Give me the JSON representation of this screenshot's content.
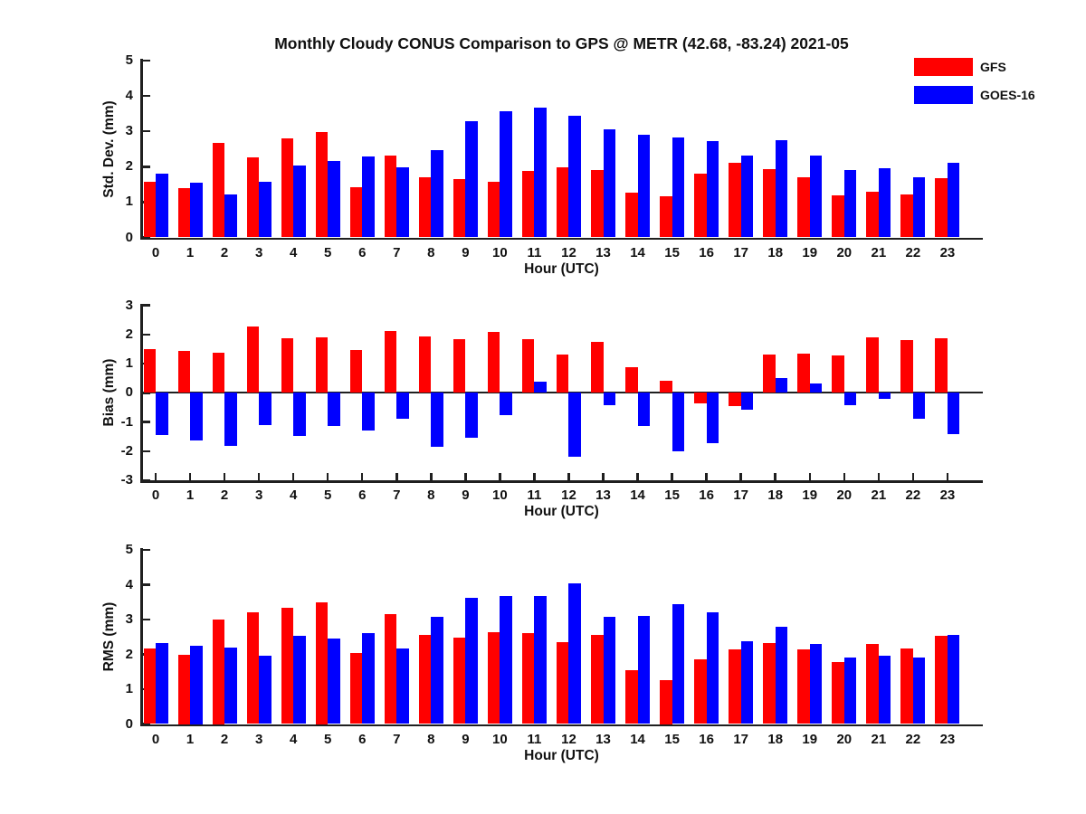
{
  "title": "Monthly Cloudy CONUS Comparison to GPS @ METR (42.68, -83.24) 2021-05",
  "legend": {
    "position": "top-right",
    "items": [
      {
        "label": "GFS",
        "color": "#ff0000"
      },
      {
        "label": "GOES-16",
        "color": "#0000ff"
      }
    ]
  },
  "axis_color": "#1f1f1f",
  "chart_data": [
    {
      "type": "bar",
      "title": "",
      "ylabel": "Std. Dev. (mm)",
      "xlabel": "Hour (UTC)",
      "categories": [
        "0",
        "1",
        "2",
        "3",
        "4",
        "5",
        "6",
        "7",
        "8",
        "9",
        "10",
        "11",
        "12",
        "13",
        "14",
        "15",
        "16",
        "17",
        "18",
        "19",
        "20",
        "21",
        "22",
        "23"
      ],
      "ylim": [
        0,
        5
      ],
      "yticks": [
        0,
        1,
        2,
        3,
        4,
        5
      ],
      "grid": false,
      "series": [
        {
          "name": "GFS",
          "color": "#ff0000",
          "values": [
            1.57,
            1.4,
            2.67,
            2.27,
            2.8,
            2.97,
            1.42,
            2.31,
            1.7,
            1.66,
            1.57,
            1.88,
            1.97,
            1.9,
            1.27,
            1.16,
            1.81,
            2.1,
            1.92,
            1.7,
            1.18,
            1.29,
            1.21,
            1.67
          ]
        },
        {
          "name": "GOES-16",
          "color": "#0000ff",
          "values": [
            1.8,
            1.55,
            1.22,
            1.57,
            2.03,
            2.15,
            2.28,
            1.97,
            2.46,
            3.28,
            3.58,
            3.66,
            3.43,
            3.06,
            2.9,
            2.82,
            2.73,
            2.32,
            2.76,
            2.31,
            1.91,
            1.96,
            1.71,
            2.1
          ]
        }
      ]
    },
    {
      "type": "bar",
      "title": "",
      "ylabel": "Bias (mm)",
      "xlabel": "Hour (UTC)",
      "categories": [
        "0",
        "1",
        "2",
        "3",
        "4",
        "5",
        "6",
        "7",
        "8",
        "9",
        "10",
        "11",
        "12",
        "13",
        "14",
        "15",
        "16",
        "17",
        "18",
        "19",
        "20",
        "21",
        "22",
        "23"
      ],
      "ylim": [
        -3,
        3
      ],
      "yticks": [
        -3,
        -2,
        -1,
        0,
        1,
        2,
        3
      ],
      "grid": false,
      "zero_line": true,
      "series": [
        {
          "name": "GFS",
          "color": "#ff0000",
          "values": [
            1.5,
            1.43,
            1.38,
            2.28,
            1.86,
            1.91,
            1.46,
            2.12,
            1.92,
            1.85,
            2.1,
            1.85,
            1.32,
            1.73,
            0.87,
            0.4,
            -0.37,
            -0.45,
            1.32,
            1.35,
            1.28,
            1.9,
            1.8,
            1.87
          ]
        },
        {
          "name": "GOES-16",
          "color": "#0000ff",
          "values": [
            -1.45,
            -1.65,
            -1.82,
            -1.12,
            -1.48,
            -1.15,
            -1.3,
            -0.88,
            -1.85,
            -1.55,
            -0.78,
            0.38,
            -2.18,
            -0.42,
            -1.15,
            -2.0,
            -1.73,
            -0.58,
            0.5,
            0.33,
            -0.42,
            -0.21,
            -0.88,
            -1.42
          ]
        }
      ]
    },
    {
      "type": "bar",
      "title": "",
      "ylabel": "RMS (mm)",
      "xlabel": "Hour (UTC)",
      "categories": [
        "0",
        "1",
        "2",
        "3",
        "4",
        "5",
        "6",
        "7",
        "8",
        "9",
        "10",
        "11",
        "12",
        "13",
        "14",
        "15",
        "16",
        "17",
        "18",
        "19",
        "20",
        "21",
        "22",
        "23"
      ],
      "ylim": [
        0,
        5
      ],
      "yticks": [
        0,
        1,
        2,
        3,
        4,
        5
      ],
      "grid": false,
      "series": [
        {
          "name": "GFS",
          "color": "#ff0000",
          "values": [
            2.17,
            2.0,
            3.0,
            3.22,
            3.35,
            3.5,
            2.03,
            3.15,
            2.57,
            2.47,
            2.63,
            2.6,
            2.35,
            2.57,
            1.55,
            1.25,
            1.85,
            2.13,
            2.32,
            2.13,
            1.78,
            2.3,
            2.17,
            2.52
          ]
        },
        {
          "name": "GOES-16",
          "color": "#0000ff",
          "values": [
            2.32,
            2.25,
            2.2,
            1.95,
            2.53,
            2.45,
            2.62,
            2.17,
            3.07,
            3.63,
            3.67,
            3.67,
            4.05,
            3.07,
            3.1,
            3.45,
            3.22,
            2.37,
            2.78,
            2.3,
            1.9,
            1.95,
            1.92,
            2.55
          ]
        }
      ]
    }
  ]
}
